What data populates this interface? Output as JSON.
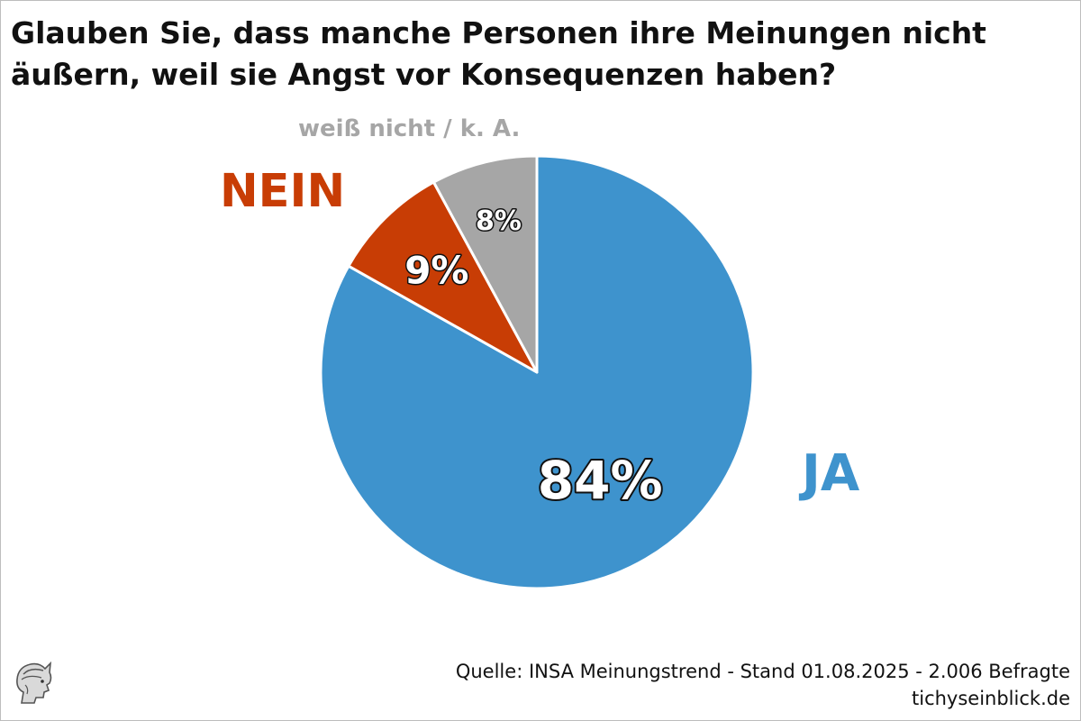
{
  "chart_data": {
    "type": "pie",
    "title": "Glauben Sie, dass manche Personen ihre Meinungen nicht äußern, weil sie Angst vor Konsequenzen haben?",
    "slices": [
      {
        "name": "JA",
        "value": 84,
        "label": "84%",
        "color": "#3e93cd"
      },
      {
        "name": "NEIN",
        "value": 9,
        "label": "9%",
        "color": "#c83d05"
      },
      {
        "name": "weiß nicht / k. A.",
        "value": 8,
        "label": "8%",
        "color": "#a6a6a6"
      }
    ]
  },
  "footer": {
    "source": "Quelle: INSA Meinungstrend - Stand 01.08.2025 - 2.006 Befragte",
    "site": "tichyseinblick.de"
  },
  "logo": {
    "icon": "hermes-head-icon"
  }
}
